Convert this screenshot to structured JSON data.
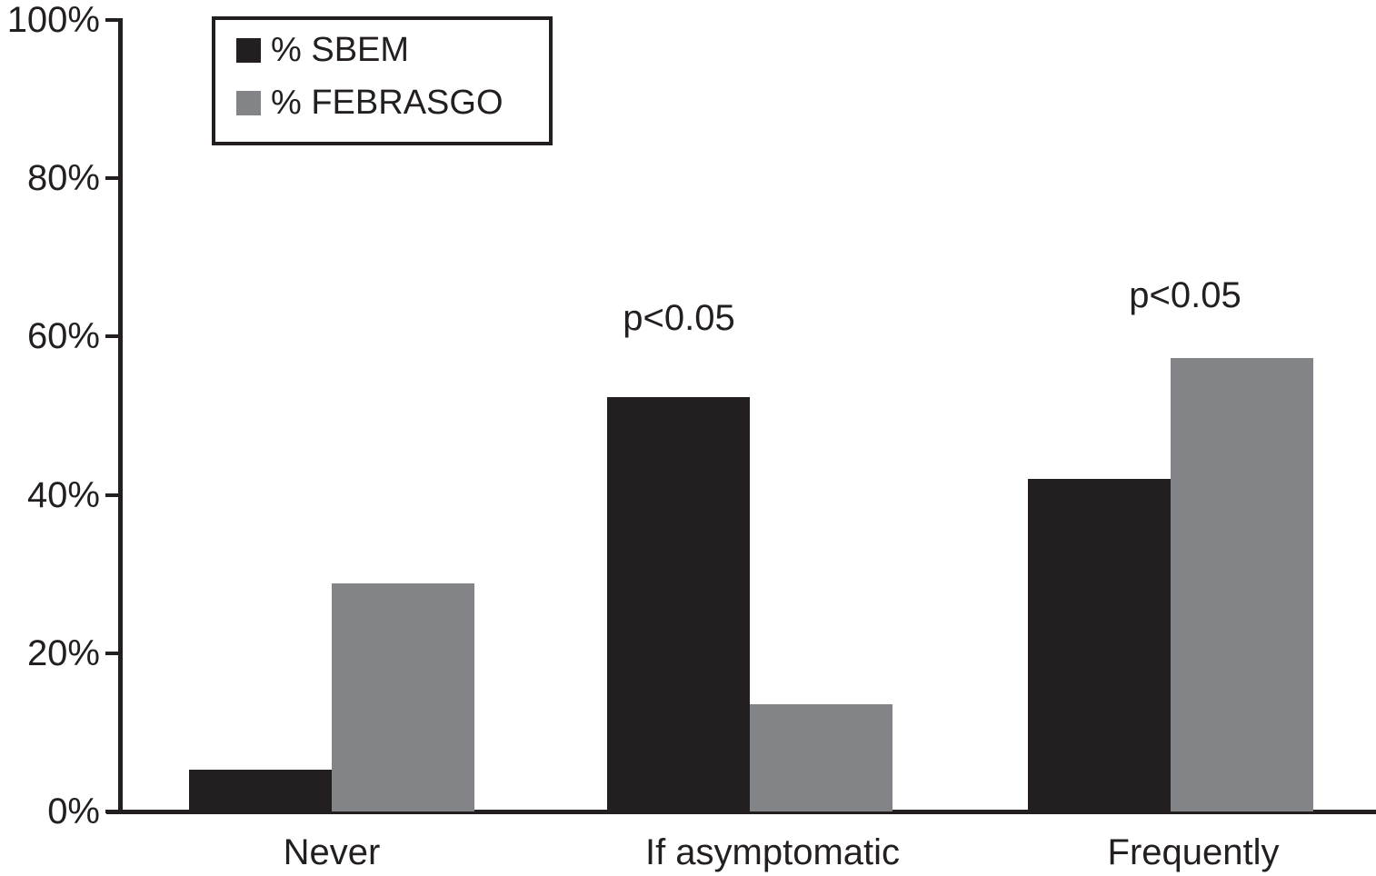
{
  "figure": {
    "background_color": "#ffffff",
    "axis_color": "#231f20"
  },
  "chart_data": {
    "type": "bar",
    "title": "",
    "xlabel": "",
    "ylabel": "",
    "categories": [
      "Never",
      "If asymptomatic",
      "Frequently"
    ],
    "series": [
      {
        "name": "% SBEM",
        "color": "#231f20",
        "values": [
          5.3,
          52.4,
          42.0
        ]
      },
      {
        "name": "% FEBRASGO",
        "color": "#828487",
        "values": [
          28.8,
          13.5,
          57.3
        ]
      }
    ],
    "annotations": [
      {
        "text": "p<0.05",
        "category_index": 1
      },
      {
        "text": "p<0.05",
        "category_index": 2
      }
    ],
    "yticks": [
      0,
      20,
      40,
      60,
      80,
      100
    ],
    "ytick_labels": [
      "0%",
      "20%",
      "40%",
      "60%",
      "80%",
      "100%"
    ],
    "ylim": [
      0,
      100
    ],
    "grid": false,
    "legend_position": "top-left"
  }
}
